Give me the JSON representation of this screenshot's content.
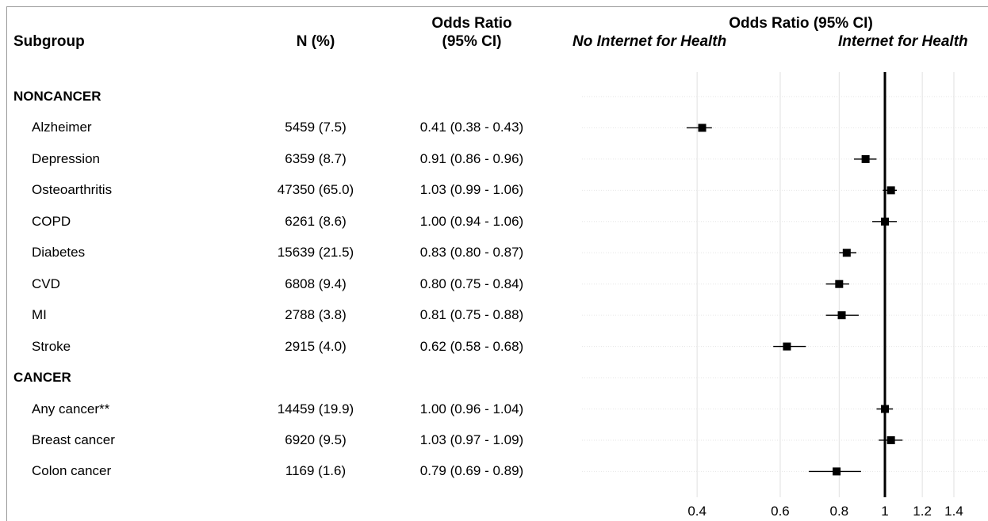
{
  "header": {
    "subgroup": "Subgroup",
    "n": "N (%)",
    "or_line1": "Odds Ratio",
    "or_line2": "(95% CI)",
    "plot_title": "Odds Ratio (95% CI)",
    "left_label": "No Internet for Health",
    "right_label": "Internet for Health"
  },
  "sections": {
    "noncancer": "NONCANCER",
    "cancer": "CANCER"
  },
  "chart_data": {
    "type": "forest",
    "title": "Odds Ratio (95% CI)",
    "x_scale": "log",
    "xlim": [
      0.35,
      1.5
    ],
    "reference_line": 1,
    "grid": true,
    "xticks": [
      0.4,
      0.6,
      0.8,
      1,
      1.2,
      1.4
    ],
    "xtick_labels": [
      "0.4",
      "0.6",
      "0.8",
      "1",
      "1.2",
      "1.4"
    ],
    "rows": [
      {
        "section": "NONCANCER"
      },
      {
        "label": "Alzheimer",
        "n": "5459 (7.5)",
        "ci_text": "0.41 (0.38 - 0.43)",
        "or": 0.41,
        "lo": 0.38,
        "hi": 0.43
      },
      {
        "label": "Depression",
        "n": "6359 (8.7)",
        "ci_text": "0.91 (0.86 - 0.96)",
        "or": 0.91,
        "lo": 0.86,
        "hi": 0.96
      },
      {
        "label": "Osteoarthritis",
        "n": "47350 (65.0)",
        "ci_text": "1.03 (0.99 - 1.06)",
        "or": 1.03,
        "lo": 0.99,
        "hi": 1.06
      },
      {
        "label": "COPD",
        "n": "6261 (8.6)",
        "ci_text": "1.00 (0.94 - 1.06)",
        "or": 1.0,
        "lo": 0.94,
        "hi": 1.06
      },
      {
        "label": "Diabetes",
        "n": "15639 (21.5)",
        "ci_text": "0.83 (0.80 - 0.87)",
        "or": 0.83,
        "lo": 0.8,
        "hi": 0.87
      },
      {
        "label": "CVD",
        "n": "6808 (9.4)",
        "ci_text": "0.80 (0.75 - 0.84)",
        "or": 0.8,
        "lo": 0.75,
        "hi": 0.84
      },
      {
        "label": "MI",
        "n": "2788 (3.8)",
        "ci_text": "0.81 (0.75 - 0.88)",
        "or": 0.81,
        "lo": 0.75,
        "hi": 0.88
      },
      {
        "label": "Stroke",
        "n": "2915 (4.0)",
        "ci_text": "0.62 (0.58 - 0.68)",
        "or": 0.62,
        "lo": 0.58,
        "hi": 0.68
      },
      {
        "section": "CANCER"
      },
      {
        "label": "Any cancer**",
        "n": "14459 (19.9)",
        "ci_text": "1.00 (0.96 - 1.04)",
        "or": 1.0,
        "lo": 0.96,
        "hi": 1.04
      },
      {
        "label": "Breast cancer",
        "n": "6920 (9.5)",
        "ci_text": "1.03 (0.97 - 1.09)",
        "or": 1.03,
        "lo": 0.97,
        "hi": 1.09
      },
      {
        "label": "Colon cancer",
        "n": "1169 (1.6)",
        "ci_text": "0.79 (0.69 - 0.89)",
        "or": 0.79,
        "lo": 0.69,
        "hi": 0.89
      }
    ]
  }
}
